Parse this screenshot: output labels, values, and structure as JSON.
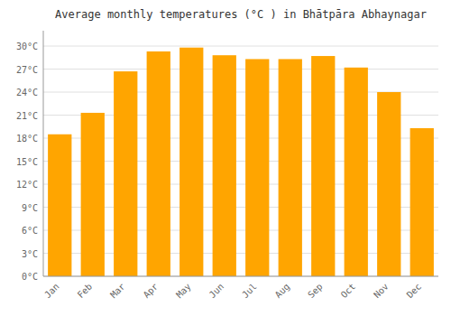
{
  "chart_data": {
    "type": "bar",
    "title": "Average monthly temperatures (°C ) in Bhātpāra Abhaynagar",
    "categories": [
      "Jan",
      "Feb",
      "Mar",
      "Apr",
      "May",
      "Jun",
      "Jul",
      "Aug",
      "Sep",
      "Oct",
      "Nov",
      "Dec"
    ],
    "values": [
      18.5,
      21.3,
      26.7,
      29.3,
      29.8,
      28.8,
      28.3,
      28.3,
      28.7,
      27.2,
      24.0,
      19.3
    ],
    "color": "#FFA500",
    "ylim": [
      0,
      32
    ],
    "yticks": [
      {
        "value": 0,
        "label": "0°C"
      },
      {
        "value": 3,
        "label": "3°C"
      },
      {
        "value": 6,
        "label": "6°C"
      },
      {
        "value": 9,
        "label": "9°C"
      },
      {
        "value": 12,
        "label": "12°C"
      },
      {
        "value": 15,
        "label": "15°C"
      },
      {
        "value": 18,
        "label": "18°C"
      },
      {
        "value": 21,
        "label": "21°C"
      },
      {
        "value": 24,
        "label": "24°C"
      },
      {
        "value": 27,
        "label": "27°C"
      },
      {
        "value": 30,
        "label": "30°C"
      }
    ],
    "grid": true
  }
}
